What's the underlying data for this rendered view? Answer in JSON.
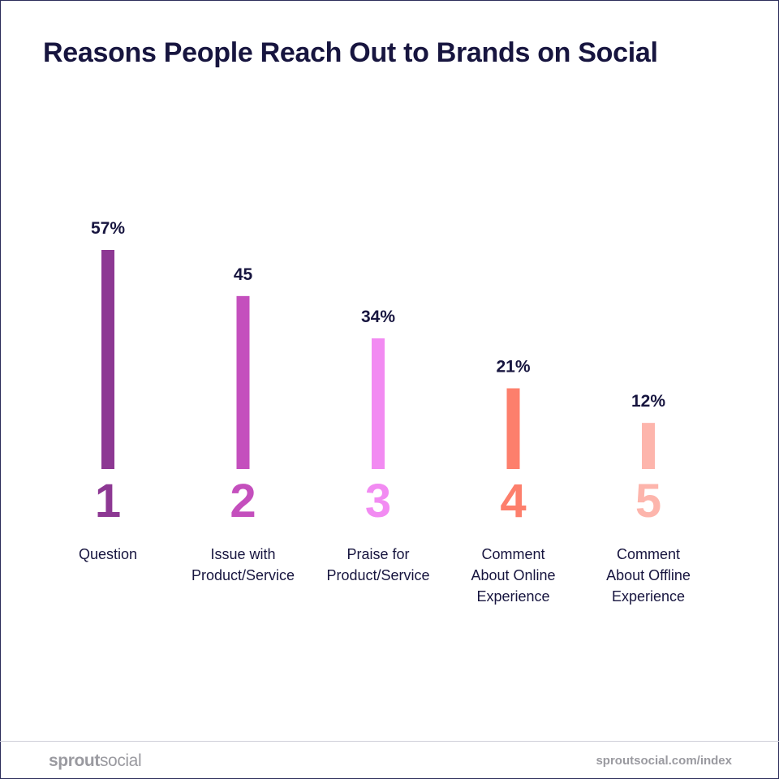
{
  "header": {
    "title": "Reasons People Reach Out to Brands on Social"
  },
  "chart_data": {
    "type": "bar",
    "title": "Reasons People Reach Out to Brands on Social",
    "xlabel": "",
    "ylabel": "",
    "ylim": [
      0,
      57
    ],
    "grid": false,
    "legend": "none",
    "categories": [
      "Question",
      "Issue with Product/Service",
      "Praise for Product/Service",
      "Comment About Online Experience",
      "Comment About Offline Experience"
    ],
    "category_lines": [
      [
        "Question"
      ],
      [
        "Issue with",
        "Product/Service"
      ],
      [
        "Praise for",
        "Product/Service"
      ],
      [
        "Comment",
        "About Online",
        "Experience"
      ],
      [
        "Comment",
        "About Offline",
        "Experience"
      ]
    ],
    "ranks": [
      "1",
      "2",
      "3",
      "4",
      "5"
    ],
    "values": [
      57,
      45,
      34,
      21,
      12
    ],
    "data_labels": [
      "57%",
      "45",
      "34%",
      "21%",
      "12%"
    ],
    "colors": [
      "#8d3893",
      "#c44fbd",
      "#f28bf2",
      "#fd7f6c",
      "#fdb5ac"
    ]
  },
  "footer": {
    "brand_bold": "sprout",
    "brand_light": "social",
    "url": "sproutsocial.com/index"
  }
}
